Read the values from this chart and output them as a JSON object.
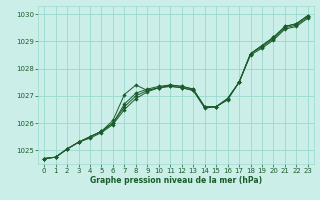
{
  "xlabel": "Graphe pression niveau de la mer (hPa)",
  "ylim": [
    1024.5,
    1030.3
  ],
  "xlim": [
    -0.5,
    23.5
  ],
  "yticks": [
    1025,
    1026,
    1027,
    1028,
    1029,
    1030
  ],
  "xticks": [
    0,
    1,
    2,
    3,
    4,
    5,
    6,
    7,
    8,
    9,
    10,
    11,
    12,
    13,
    14,
    15,
    16,
    17,
    18,
    19,
    20,
    21,
    22,
    23
  ],
  "bg_color": "#cceee8",
  "grid_color": "#99d9d0",
  "line_color": "#1a5c2a",
  "line1": [
    1024.7,
    1024.75,
    1025.05,
    1025.3,
    1025.45,
    1025.65,
    1025.95,
    1026.5,
    1026.9,
    1027.15,
    1027.3,
    1027.35,
    1027.3,
    1027.2,
    1026.55,
    1026.6,
    1026.85,
    1027.5,
    1028.5,
    1028.75,
    1029.05,
    1029.45,
    1029.55,
    1029.85
  ],
  "line2": [
    1024.7,
    1024.75,
    1025.05,
    1025.3,
    1025.5,
    1025.7,
    1026.0,
    1026.6,
    1027.0,
    1027.2,
    1027.3,
    1027.35,
    1027.3,
    1027.2,
    1026.6,
    1026.6,
    1026.9,
    1027.5,
    1028.55,
    1028.8,
    1029.1,
    1029.5,
    1029.6,
    1029.9
  ],
  "line3": [
    1024.7,
    1024.75,
    1025.05,
    1025.3,
    1025.5,
    1025.7,
    1026.0,
    1026.7,
    1027.1,
    1027.25,
    1027.35,
    1027.4,
    1027.35,
    1027.25,
    1026.6,
    1026.6,
    1026.9,
    1027.5,
    1028.55,
    1028.85,
    1029.15,
    1029.55,
    1029.65,
    1029.95
  ],
  "line4": [
    1024.7,
    1024.75,
    1025.05,
    1025.3,
    1025.5,
    1025.7,
    1026.1,
    1027.05,
    1027.4,
    1027.2,
    1027.3,
    1027.4,
    1027.35,
    1027.25,
    1026.6,
    1026.6,
    1026.9,
    1027.5,
    1028.55,
    1028.85,
    1029.15,
    1029.55,
    1029.65,
    1029.95
  ]
}
